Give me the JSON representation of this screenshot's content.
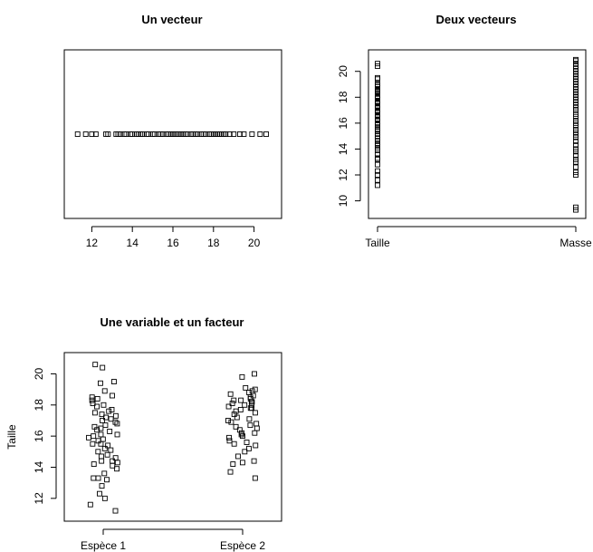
{
  "chart_data": [
    {
      "type": "scatter",
      "title": "Un vecteur",
      "xlabel": "",
      "ylabel": "",
      "xlim": [
        11,
        21
      ],
      "xticks": [
        12,
        14,
        16,
        18,
        20
      ],
      "y_constant": 1,
      "x": [
        11.3,
        11.7,
        12.0,
        12.2,
        12.7,
        12.8,
        13.2,
        13.3,
        13.4,
        13.6,
        13.7,
        13.9,
        14.0,
        14.2,
        14.3,
        14.4,
        14.5,
        14.7,
        14.8,
        15.0,
        15.1,
        15.3,
        15.4,
        15.5,
        15.7,
        15.8,
        15.9,
        16.0,
        16.1,
        16.2,
        16.3,
        16.4,
        16.5,
        16.6,
        16.7,
        16.9,
        17.0,
        17.1,
        17.2,
        17.4,
        17.5,
        17.6,
        17.8,
        17.9,
        18.0,
        18.1,
        18.2,
        18.3,
        18.4,
        18.5,
        18.6,
        18.8,
        19.0,
        19.3,
        19.5,
        19.9,
        20.3,
        20.6
      ]
    },
    {
      "type": "scatter",
      "title": "Deux vecteurs",
      "xlabel": "",
      "ylabel": "",
      "categories": [
        "Taille",
        "Masse"
      ],
      "ylim": [
        9.2,
        21.1
      ],
      "yticks": [
        10,
        12,
        14,
        16,
        18,
        20
      ],
      "series": [
        {
          "name": "Taille",
          "values": [
            11.2,
            11.6,
            12.0,
            12.3,
            12.8,
            13.2,
            13.3,
            13.6,
            13.9,
            14.1,
            14.3,
            14.4,
            14.6,
            14.8,
            15.0,
            15.2,
            15.4,
            15.5,
            15.7,
            15.9,
            16.0,
            16.2,
            16.3,
            16.5,
            16.6,
            16.8,
            16.9,
            17.0,
            17.2,
            17.3,
            17.5,
            17.6,
            17.7,
            17.9,
            18.0,
            18.1,
            18.3,
            18.4,
            18.5,
            18.6,
            18.8,
            18.9,
            19.0,
            19.4,
            19.5,
            20.4,
            20.6
          ]
        },
        {
          "name": "Masse",
          "values": [
            9.3,
            9.5,
            12.0,
            12.2,
            12.6,
            13.0,
            13.2,
            13.5,
            13.8,
            14.0,
            14.3,
            14.6,
            14.9,
            15.1,
            15.3,
            15.5,
            15.8,
            16.0,
            16.2,
            16.5,
            16.7,
            17.0,
            17.2,
            17.4,
            17.6,
            17.8,
            18.0,
            18.2,
            18.4,
            18.6,
            18.8,
            19.0,
            19.2,
            19.4,
            19.6,
            19.8,
            20.0,
            20.2,
            20.4,
            20.6,
            20.8,
            20.9
          ]
        }
      ]
    },
    {
      "type": "scatter",
      "title": "Une variable et un facteur",
      "xlabel": "",
      "ylabel": "Taille",
      "categories": [
        "Espèce 1",
        "Espèce 2"
      ],
      "ylim": [
        11.0,
        20.9
      ],
      "yticks": [
        12,
        14,
        16,
        18,
        20
      ],
      "series": [
        {
          "name": "Espèce 1",
          "values": [
            11.2,
            11.6,
            12.0,
            12.3,
            12.8,
            13.2,
            13.3,
            13.3,
            13.6,
            13.9,
            14.1,
            14.2,
            14.3,
            14.4,
            14.4,
            14.6,
            14.7,
            14.8,
            15.0,
            15.1,
            15.2,
            15.4,
            15.5,
            15.5,
            15.7,
            15.8,
            15.9,
            16.0,
            16.1,
            16.1,
            16.3,
            16.4,
            16.5,
            16.6,
            16.7,
            16.8,
            16.9,
            17.0,
            17.1,
            17.2,
            17.3,
            17.4,
            17.5,
            17.6,
            17.7,
            17.9,
            18.0,
            18.1,
            18.3,
            18.4,
            18.5,
            18.6,
            18.9,
            19.4,
            19.5,
            20.4,
            20.6
          ]
        },
        {
          "name": "Espèce 2",
          "values": [
            13.3,
            13.7,
            14.2,
            14.3,
            14.4,
            14.7,
            15.0,
            15.2,
            15.4,
            15.5,
            15.6,
            15.7,
            15.9,
            16.0,
            16.1,
            16.2,
            16.2,
            16.4,
            16.5,
            16.6,
            16.7,
            16.8,
            16.9,
            17.0,
            17.1,
            17.2,
            17.4,
            17.5,
            17.6,
            17.7,
            17.8,
            17.8,
            17.9,
            18.0,
            18.0,
            18.1,
            18.2,
            18.2,
            18.3,
            18.3,
            18.4,
            18.5,
            18.6,
            18.7,
            18.8,
            18.9,
            19.0,
            19.1,
            19.8,
            20.0
          ]
        }
      ]
    }
  ]
}
